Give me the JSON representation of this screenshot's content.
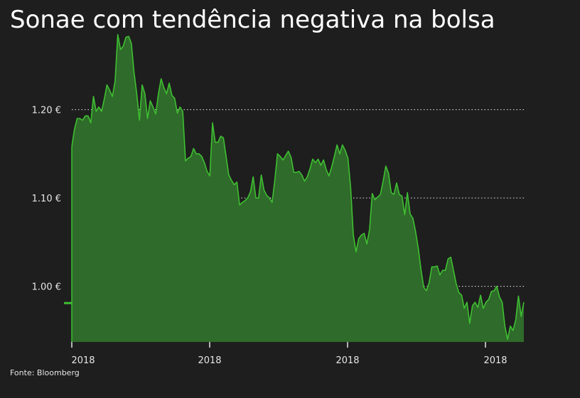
{
  "title": "Sonae com tendência negativa na bolsa",
  "source": "Fonte: Bloomberg",
  "colors": {
    "background": "#1e1e1e",
    "area_fill": "#2f6b2a",
    "line": "#3fbf32",
    "gridline": "#d8d8d8",
    "text": "#ffffff"
  },
  "chart_data": {
    "type": "area",
    "title": "Sonae com tendência negativa na bolsa",
    "xlabel": "",
    "ylabel": "",
    "ylim": [
      0.937,
      1.292
    ],
    "y_ticks": [
      1.0,
      1.1,
      1.2
    ],
    "y_tick_labels": [
      "1.00 €",
      "1.10 €",
      "1.20 €"
    ],
    "x_tick_labels": [
      "2018",
      "2018",
      "2018",
      "2018"
    ],
    "grid": "horizontal dotted",
    "legend": "none",
    "reference_value": 0.981,
    "series": [
      {
        "values": [
          1.158,
          1.178,
          1.19,
          1.19,
          1.188,
          1.193,
          1.193,
          1.185,
          1.215,
          1.198,
          1.203,
          1.198,
          1.212,
          1.228,
          1.222,
          1.215,
          1.232,
          1.285,
          1.268,
          1.272,
          1.282,
          1.283,
          1.275,
          1.242,
          1.218,
          1.188,
          1.228,
          1.218,
          1.19,
          1.21,
          1.203,
          1.195,
          1.218,
          1.235,
          1.225,
          1.218,
          1.23,
          1.216,
          1.213,
          1.196,
          1.203,
          1.198,
          1.142,
          1.145,
          1.147,
          1.156,
          1.15,
          1.15,
          1.147,
          1.14,
          1.13,
          1.125,
          1.185,
          1.163,
          1.163,
          1.17,
          1.168,
          1.147,
          1.126,
          1.12,
          1.115,
          1.118,
          1.092,
          1.095,
          1.097,
          1.1,
          1.107,
          1.124,
          1.1,
          1.1,
          1.126,
          1.109,
          1.103,
          1.1,
          1.095,
          1.12,
          1.15,
          1.147,
          1.143,
          1.148,
          1.153,
          1.146,
          1.129,
          1.129,
          1.13,
          1.126,
          1.119,
          1.124,
          1.133,
          1.144,
          1.14,
          1.144,
          1.137,
          1.143,
          1.132,
          1.125,
          1.135,
          1.147,
          1.16,
          1.15,
          1.16,
          1.154,
          1.145,
          1.112,
          1.058,
          1.039,
          1.054,
          1.058,
          1.06,
          1.048,
          1.064,
          1.105,
          1.098,
          1.101,
          1.104,
          1.119,
          1.136,
          1.128,
          1.106,
          1.104,
          1.117,
          1.104,
          1.102,
          1.081,
          1.106,
          1.082,
          1.077,
          1.062,
          1.043,
          1.019,
          0.999,
          0.995,
          1.004,
          1.022,
          1.022,
          1.023,
          1.013,
          1.018,
          1.018,
          1.031,
          1.033,
          1.018,
          1.003,
          0.993,
          0.99,
          0.975,
          0.982,
          0.958,
          0.978,
          0.982,
          0.976,
          0.99,
          0.975,
          0.982,
          0.985,
          0.994,
          0.995,
          1.0,
          0.988,
          0.982,
          0.955,
          0.94,
          0.955,
          0.95,
          0.962,
          0.989,
          0.966,
          0.982
        ]
      }
    ]
  }
}
